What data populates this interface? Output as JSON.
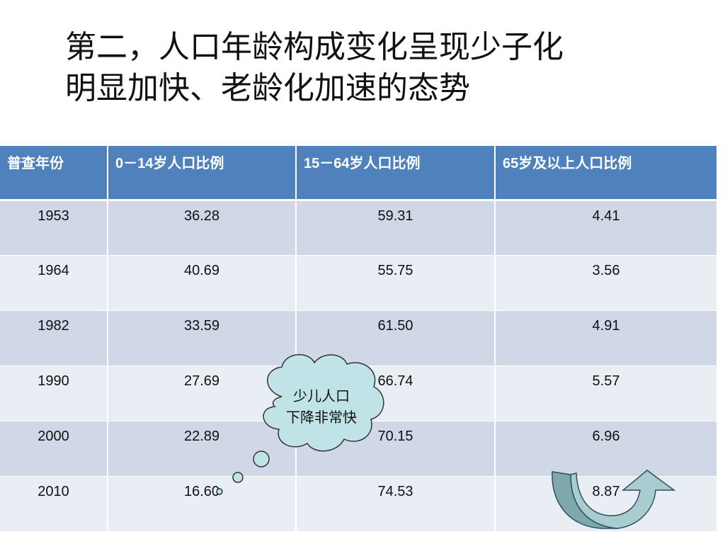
{
  "slide": {
    "title_line1": "第二，人口年龄构成变化呈现少子化",
    "title_line2": "明显加快、老龄化加速的态势"
  },
  "table": {
    "headers": [
      "普查年份",
      "0－14岁人口比例",
      "15－64岁人口比例",
      "65岁及以上人口比例"
    ],
    "rows": [
      [
        "1953",
        "36.28",
        "59.31",
        "4.41"
      ],
      [
        "1964",
        "40.69",
        "55.75",
        "3.56"
      ],
      [
        "1982",
        "33.59",
        "61.50",
        "4.91"
      ],
      [
        "1990",
        "27.69",
        "66.74",
        "5.57"
      ],
      [
        "2000",
        "22.89",
        "70.15",
        "6.96"
      ],
      [
        "2010",
        "16.60",
        "74.53",
        "8.87"
      ]
    ]
  },
  "callout": {
    "line1": "少儿人口",
    "line2": "下降非常快",
    "fill_color": "#bfe3e6",
    "stroke_color": "#333333"
  },
  "arrow": {
    "icon": "curved-up-arrow-icon",
    "fill_color": "#9fc4c8",
    "stroke_color": "#2f4f5a"
  },
  "theme": {
    "header_color": "#4f81bd",
    "row_odd_color": "#d0d8e8",
    "row_even_color": "#e9edf4"
  }
}
